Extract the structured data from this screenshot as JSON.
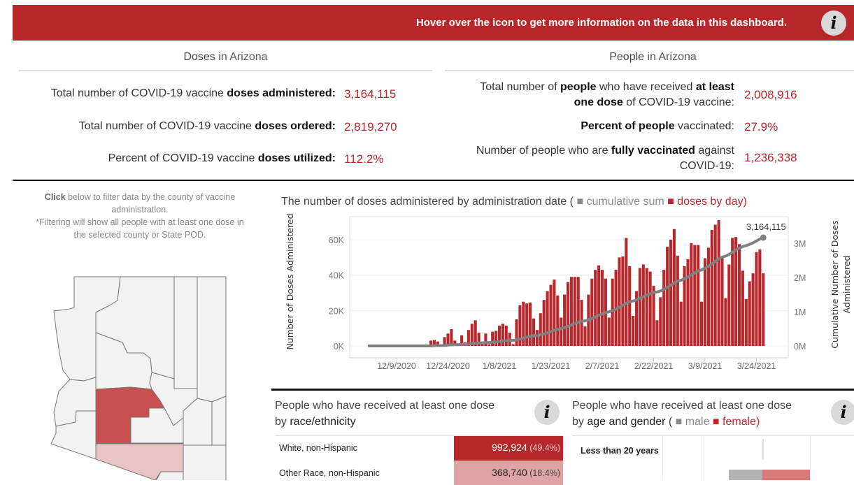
{
  "banner": {
    "text": "Hover over the icon to get more information on the data in this dashboard.",
    "info_icon": "i"
  },
  "doses": {
    "title_bold": "Doses",
    "title_rest": " in Arizona",
    "rows": [
      {
        "pre": "Total number of COVID-19 vaccine ",
        "bold": "doses administered:",
        "value": "3,164,115"
      },
      {
        "pre": "Total number of COVID-19 vaccine ",
        "bold": "doses ordered:",
        "value": "2,819,270"
      },
      {
        "pre": "Percent of COVID-19 vaccine ",
        "bold": "doses utilized:",
        "value": "112.2%"
      }
    ]
  },
  "people": {
    "title_bold": "People",
    "title_rest": " in Arizona",
    "r1": {
      "a": "Total number of ",
      "b": "people",
      "c": " who have received ",
      "d": "at least",
      "e": "one dose",
      "f": " of COVID-19 vaccine:",
      "value": "2,008,916"
    },
    "r2": {
      "b": "Percent of people",
      "c": " vaccinated:",
      "value": "27.9%"
    },
    "r3": {
      "a": "Number of people who are ",
      "b": "fully vaccinated",
      "c": " against",
      "d": "COVID-19:",
      "value": "1,236,338"
    }
  },
  "filter_note": {
    "bold": "Click",
    "l1": " below to filter data by the county of vaccine",
    "l2": "administration.",
    "l3": "*Filtering will show all people with at least one dose in",
    "l4": "the selected county or State POD."
  },
  "chart_data": {
    "type": "bar+line",
    "title": "The number of doses administered by administration date (",
    "legend": [
      {
        "name": "cumulative sum",
        "color": "#777777"
      },
      {
        "name": "doses by day",
        "color": "#c0282d"
      }
    ],
    "legend_close": ")",
    "ylabel": "Number of Doses Administered",
    "y2label_1": "Cumulative Number of Doses",
    "y2label_2": "Administered",
    "yticks": [
      "0K",
      "20K",
      "40K",
      "60K"
    ],
    "ytick_values": [
      0,
      20,
      40,
      60
    ],
    "y2ticks": [
      "0M",
      "1M",
      "2M",
      "3M"
    ],
    "y2tick_values": [
      0,
      1000,
      2000,
      3000
    ],
    "xticks": [
      "12/9/2020",
      "12/24/2020",
      "1/8/2021",
      "1/23/2021",
      "2/7/2021",
      "2/22/2021",
      "3/9/2021",
      "3/24/2021"
    ],
    "xtick_day_offsets": [
      0,
      15,
      30,
      45,
      60,
      75,
      90,
      105
    ],
    "first_bar_day_offset": 9,
    "line_start_day_offset": -8,
    "daily_doses_k": [
      0.5,
      3,
      3.3,
      2.5,
      0.3,
      5,
      7,
      9.5,
      3,
      1,
      6,
      2,
      9,
      12.5,
      14.5,
      7.5,
      2,
      7,
      1,
      8,
      8.5,
      11.5,
      12.5,
      11.5,
      7.5,
      1,
      15,
      23,
      25,
      24,
      24.5,
      15.5,
      9,
      18.5,
      26,
      31,
      34.5,
      37.5,
      28.5,
      16,
      29,
      36,
      39,
      39,
      39,
      26,
      11,
      29,
      38,
      43,
      45.5,
      43,
      38,
      16,
      38,
      43,
      50,
      50.5,
      61,
      45,
      17,
      31,
      44,
      46,
      44,
      42,
      34,
      14.5,
      27.5,
      43,
      56,
      60,
      66,
      51,
      25,
      45,
      49,
      58,
      57,
      57,
      25,
      49.5,
      55.5,
      65.5,
      68.5,
      71,
      50,
      27,
      46,
      61,
      61.5,
      57.5,
      42.5,
      26.5,
      36.5,
      41,
      53,
      54.5,
      41
    ],
    "cumulative_final": 3164115,
    "cumulative_label": "3,164,115"
  },
  "race": {
    "title": "People who have received at least one dose",
    "title2_pre": "by ",
    "title2_bold": "race/ethnicity",
    "rows": [
      {
        "label": "White, non-Hispanic",
        "value": "992,924",
        "pct": " (49.4%)",
        "color": "#b8272b"
      },
      {
        "label": "Other Race, non-Hispanic",
        "value": "368,740",
        "pct": " (18.4%)",
        "color": "#e0a3a3"
      }
    ]
  },
  "age": {
    "title": "People who have received at least one dose",
    "title2_pre": "by ",
    "title2_bold": "age and gender",
    "open": " ( ",
    "male": "male",
    "female": "female)",
    "rows": [
      {
        "label": "Less than 20 years"
      }
    ]
  },
  "colors": {
    "accent": "#b8272b",
    "maricopa": "#c85050",
    "pima": "#e8c4c4",
    "county": "#f2f2f2"
  }
}
